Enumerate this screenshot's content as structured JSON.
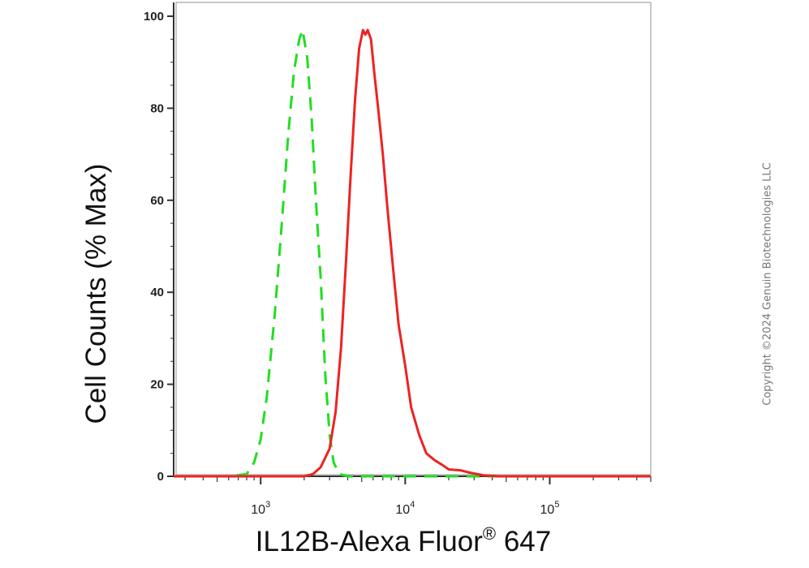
{
  "chart_data": {
    "type": "line",
    "title": "",
    "xlabel": "IL12B-Alexa Fluor",
    "xlabel_superscript": "®",
    "xlabel_suffix": " 647",
    "ylabel": "Cell Counts (% Max)",
    "x_scale": "log",
    "xlim": [
      250,
      500000
    ],
    "ylim": [
      0,
      103
    ],
    "y_ticks": [
      0,
      20,
      40,
      60,
      80,
      100
    ],
    "x_ticks": [
      {
        "base": "10",
        "exp": "3",
        "value": 1000
      },
      {
        "base": "10",
        "exp": "4",
        "value": 10000
      },
      {
        "base": "10",
        "exp": "5",
        "value": 100000
      }
    ],
    "grid": false,
    "series": [
      {
        "color": "#22dd22",
        "style": "dashed",
        "x": [
          250,
          600,
          800,
          900,
          1000,
          1100,
          1250,
          1400,
          1550,
          1700,
          1850,
          1950,
          2100,
          2250,
          2400,
          2600,
          2800,
          3000,
          3200,
          3500,
          4000,
          5000,
          10000,
          100000,
          500000
        ],
        "y": [
          0,
          0,
          0.5,
          3,
          8,
          17,
          35,
          55,
          74,
          88,
          95,
          97,
          91,
          78,
          61,
          43,
          22,
          9,
          3,
          0.5,
          0,
          0,
          0,
          0,
          0
        ]
      },
      {
        "color": "#ee2222",
        "style": "solid",
        "x": [
          250,
          1000,
          2000,
          2300,
          2600,
          3000,
          3300,
          3600,
          3900,
          4200,
          4500,
          4800,
          5100,
          5300,
          5500,
          5800,
          6100,
          6500,
          7000,
          7500,
          8200,
          9000,
          10000,
          11000,
          12500,
          14000,
          16000,
          18000,
          20000,
          24000,
          28000,
          35000,
          45000,
          100000,
          500000
        ],
        "y": [
          0,
          0,
          0,
          0.5,
          2,
          6,
          14,
          28,
          47,
          66,
          82,
          93,
          97,
          96,
          97,
          95,
          88,
          80,
          70,
          59,
          46,
          33,
          24,
          15,
          9,
          5,
          3.5,
          2.5,
          1.5,
          1.3,
          0.8,
          0.2,
          0,
          0,
          0
        ]
      }
    ]
  },
  "watermark": "Copyright ©2024 Genuin Biotechnologies LLC"
}
